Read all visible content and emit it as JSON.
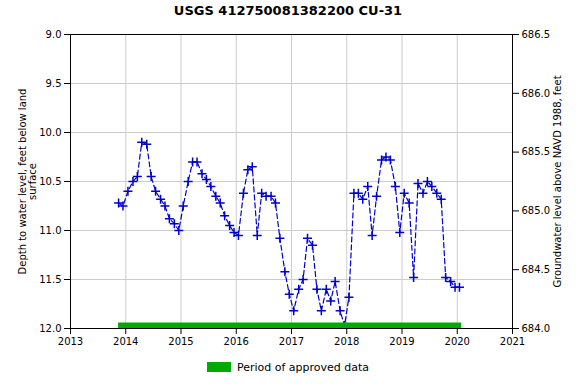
{
  "chart_data": {
    "type": "line",
    "title": "USGS 412750081382200 CU-31",
    "y_label": "Depth to water level, feet below land\nsurface",
    "y2_label": "Groundwater level above NAVD 1988, feet",
    "xlim": [
      2013,
      2021
    ],
    "xticks": [
      2013,
      2014,
      2015,
      2016,
      2017,
      2018,
      2019,
      2020,
      2021
    ],
    "ylim": [
      12.0,
      9.0
    ],
    "yticks": [
      {
        "value": 9.0,
        "label": "9.0"
      },
      {
        "value": 9.5,
        "label": "9.5"
      },
      {
        "value": 10.0,
        "label": "10.0"
      },
      {
        "value": 10.5,
        "label": "10.5"
      },
      {
        "value": 11.0,
        "label": "11.0"
      },
      {
        "value": 11.5,
        "label": "11.5"
      },
      {
        "value": 12.0,
        "label": "12.0"
      }
    ],
    "y2lim": [
      684.0,
      686.5
    ],
    "y2ticks": [
      {
        "value": 684.0,
        "label": "684.0"
      },
      {
        "value": 684.5,
        "label": "684.5"
      },
      {
        "value": 685.0,
        "label": "685.0"
      },
      {
        "value": 685.5,
        "label": "685.5"
      },
      {
        "value": 686.0,
        "label": "686.0"
      },
      {
        "value": 686.5,
        "label": "686.5"
      }
    ],
    "grid": true,
    "legend": "bottom",
    "x": [
      2013.87,
      2013.95,
      2014.04,
      2014.13,
      2014.21,
      2014.29,
      2014.38,
      2014.46,
      2014.54,
      2014.63,
      2014.71,
      2014.79,
      2014.88,
      2014.96,
      2015.04,
      2015.13,
      2015.21,
      2015.29,
      2015.38,
      2015.46,
      2015.54,
      2015.63,
      2015.71,
      2015.79,
      2015.88,
      2015.96,
      2016.04,
      2016.13,
      2016.21,
      2016.29,
      2016.38,
      2016.46,
      2016.54,
      2016.63,
      2016.71,
      2016.79,
      2016.88,
      2016.96,
      2017.04,
      2017.13,
      2017.21,
      2017.29,
      2017.38,
      2017.46,
      2017.54,
      2017.63,
      2017.71,
      2017.79,
      2017.88,
      2017.96,
      2018.04,
      2018.13,
      2018.21,
      2018.29,
      2018.38,
      2018.46,
      2018.54,
      2018.63,
      2018.71,
      2018.79,
      2018.88,
      2018.96,
      2019.04,
      2019.13,
      2019.21,
      2019.29,
      2019.38,
      2019.46,
      2019.54,
      2019.63,
      2019.71,
      2019.79,
      2019.88,
      2019.96,
      2020.04
    ],
    "series": [
      {
        "color": "#0000cc",
        "line_style": "dashed",
        "marker": "plus",
        "values": [
          10.72,
          10.75,
          10.6,
          10.5,
          10.45,
          10.1,
          10.12,
          10.45,
          10.6,
          10.68,
          10.75,
          10.88,
          10.93,
          11.0,
          10.75,
          10.5,
          10.3,
          10.3,
          10.42,
          10.48,
          10.55,
          10.65,
          10.72,
          10.85,
          10.95,
          11.02,
          11.05,
          10.62,
          10.38,
          10.35,
          11.05,
          10.62,
          10.65,
          10.65,
          10.72,
          11.08,
          11.42,
          11.65,
          11.82,
          11.6,
          11.5,
          11.08,
          11.15,
          11.6,
          11.82,
          11.6,
          11.72,
          11.52,
          11.82,
          11.97,
          11.68,
          10.62,
          10.62,
          10.68,
          10.55,
          11.05,
          10.65,
          10.28,
          10.25,
          10.28,
          10.55,
          11.02,
          10.62,
          10.72,
          11.48,
          10.52,
          10.62,
          10.5,
          10.55,
          10.62,
          10.68,
          11.48,
          11.52,
          11.58,
          11.58
        ]
      }
    ],
    "approved_period": {
      "name": "Period of approved data",
      "color": "#00aa00",
      "x": [
        2013.87,
        2020.08
      ]
    }
  }
}
